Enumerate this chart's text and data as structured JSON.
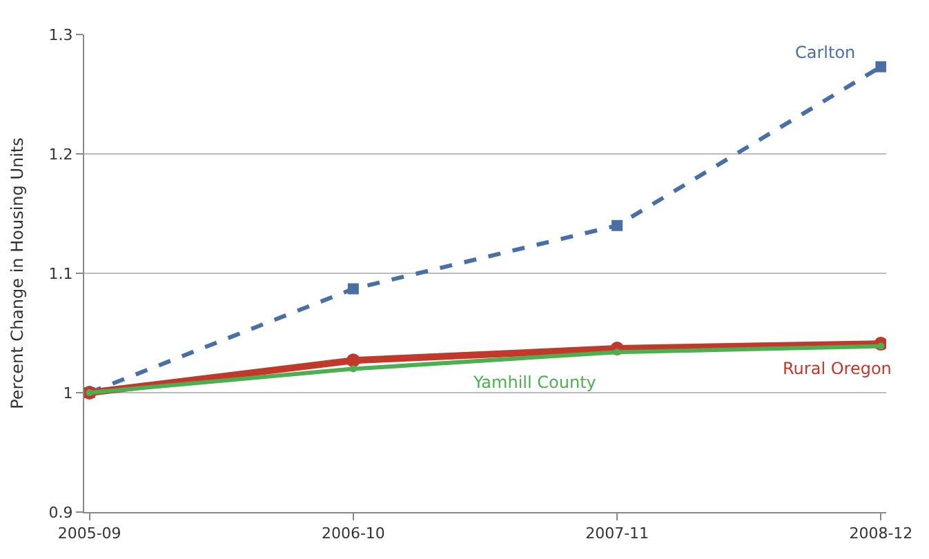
{
  "chart_data": {
    "type": "line",
    "ylabel": "Percent Change in Housing Units",
    "categories": [
      "2005-09",
      "2006-10",
      "2007-11",
      "2008-12"
    ],
    "ylim": [
      0.9,
      1.3
    ],
    "yticks": [
      0.9,
      1,
      1.1,
      1.2,
      1.3
    ],
    "grid": "y",
    "legend": false,
    "series": [
      {
        "name": "Carlton",
        "color": "#4a6fa5",
        "values": [
          1,
          1.087,
          1.14,
          1.273
        ],
        "marker": "square",
        "line_style": "dashed"
      },
      {
        "name": "Rural Oregon",
        "color": "#c0392b",
        "values": [
          1,
          1.027,
          1.037,
          1.041
        ],
        "marker": "circle",
        "line_style": "solid"
      },
      {
        "name": "Yamhill County",
        "color": "#4caf50",
        "values": [
          1,
          1.02,
          1.034,
          1.039
        ],
        "marker": "circle",
        "line_style": "solid"
      }
    ]
  }
}
